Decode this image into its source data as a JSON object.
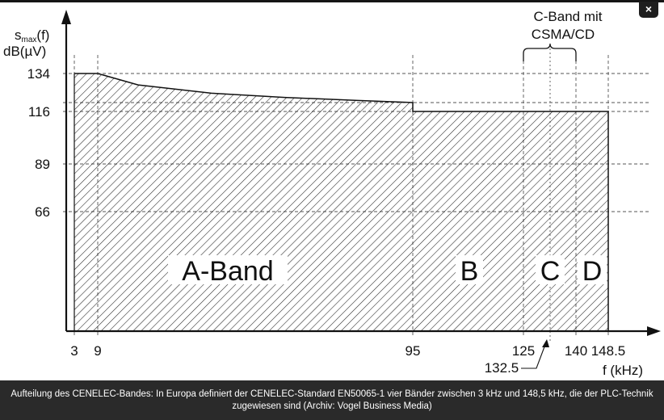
{
  "window": {
    "close_glyph": "×"
  },
  "caption": "Aufteilung des CENELEC-Bandes: In Europa definiert der CENELEC-Standard EN50065-1 vier Bänder zwischen 3 kHz und 148,5 kHz, die der PLC-Technik zugewiesen sind (Archiv: Vogel Business Media)",
  "chart_data": {
    "type": "area",
    "title": "",
    "xlabel": "f (kHz)",
    "ylabel": {
      "symbol": "s",
      "subscript": "max",
      "suffix": "(f)",
      "unit": "dB(µV)"
    },
    "x_ticks": [
      "3",
      "9",
      "95",
      "125",
      "140",
      "148.5"
    ],
    "x_tick_values": [
      3,
      9,
      95,
      125,
      140,
      148.5
    ],
    "y_ticks": [
      "134",
      "116",
      "89",
      "66"
    ],
    "y_tick_values": [
      134,
      116,
      89,
      66
    ],
    "y_dashed_extra": [
      120
    ],
    "grid": true,
    "limit_curve": {
      "x": [
        3,
        9,
        20,
        40,
        60,
        80,
        95,
        95,
        148.5
      ],
      "y": [
        134,
        134,
        128.5,
        124.5,
        122.5,
        121,
        120,
        116,
        116
      ]
    },
    "bands": [
      {
        "label": "A-Band",
        "from": 3,
        "to": 95
      },
      {
        "label": "B",
        "from": 95,
        "to": 125
      },
      {
        "label": "C",
        "from": 125,
        "to": 140
      },
      {
        "label": "D",
        "from": 140,
        "to": 148.5
      }
    ],
    "annotations": [
      {
        "text": "C-Band mit",
        "x": 132.5
      },
      {
        "text": "CSMA/CD",
        "x": 132.5
      },
      {
        "text": "132.5",
        "x": 132.5
      }
    ]
  }
}
